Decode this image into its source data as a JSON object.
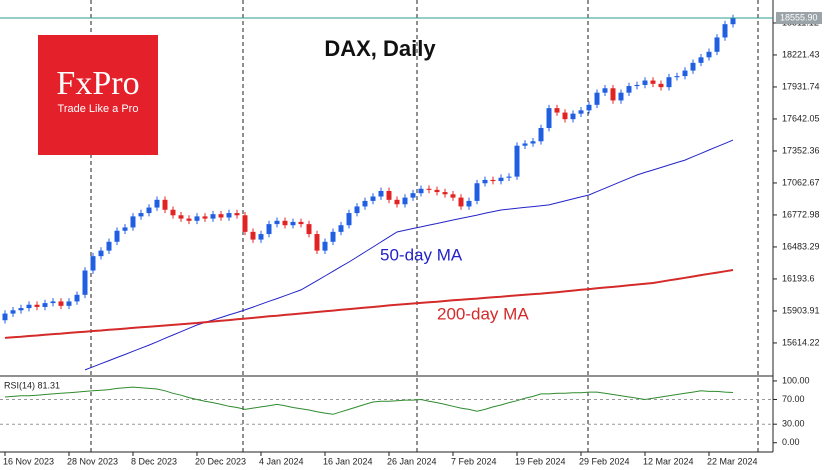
{
  "logo": {
    "name": "FxPro",
    "tagline": "Trade Like a Pro"
  },
  "chart_data": [
    {
      "type": "candlestick",
      "title": "DAX, Daily",
      "categories": [
        "16 Nov 2023",
        null,
        null,
        null,
        null,
        null,
        null,
        null,
        "28 Nov 2023",
        null,
        null,
        null,
        null,
        null,
        null,
        null,
        "8 Dec 2023",
        null,
        null,
        null,
        null,
        null,
        null,
        null,
        "20 Dec 2023",
        null,
        null,
        null,
        null,
        null,
        null,
        null,
        "4 Jan 2024",
        null,
        null,
        null,
        null,
        null,
        null,
        null,
        "16 Jan 2024",
        null,
        null,
        null,
        null,
        null,
        null,
        null,
        "26 Jan 2024",
        null,
        null,
        null,
        null,
        null,
        null,
        null,
        "7 Feb 2024",
        null,
        null,
        null,
        null,
        null,
        null,
        null,
        "19 Feb 2024",
        null,
        null,
        null,
        null,
        null,
        null,
        null,
        "29 Feb 2024",
        null,
        null,
        null,
        null,
        null,
        null,
        null,
        "12 Mar 2024",
        null,
        null,
        null,
        null,
        null,
        null,
        null,
        "22 Mar 2024",
        null,
        null,
        null
      ],
      "open": [
        15820,
        15880,
        15910,
        15930,
        15960,
        15940,
        15975,
        15990,
        15950,
        15990,
        16050,
        16270,
        16400,
        16450,
        16530,
        16630,
        16660,
        16760,
        16790,
        16840,
        16910,
        16820,
        16770,
        16740,
        16720,
        16760,
        16740,
        16780,
        16750,
        16790,
        16770,
        16620,
        16550,
        16600,
        16690,
        16720,
        16680,
        16710,
        16690,
        16600,
        16450,
        16530,
        16620,
        16680,
        16790,
        16850,
        16900,
        16940,
        16990,
        16910,
        16870,
        16930,
        16970,
        17010,
        17000,
        16980,
        16960,
        16930,
        16850,
        16900,
        17060,
        17090,
        17080,
        17110,
        17120,
        17400,
        17420,
        17440,
        17560,
        17740,
        17700,
        17640,
        17690,
        17720,
        17770,
        17880,
        17920,
        17810,
        17880,
        17940,
        17950,
        17990,
        17960,
        17930,
        18020,
        18030,
        18080,
        18150,
        18200,
        18250,
        18380,
        18500
      ],
      "high": [
        15910,
        15940,
        15960,
        15990,
        15990,
        16005,
        16020,
        16020,
        16020,
        16080,
        16300,
        16430,
        16480,
        16560,
        16660,
        16690,
        16790,
        16820,
        16870,
        16940,
        16940,
        16850,
        16800,
        16770,
        16790,
        16790,
        16810,
        16810,
        16820,
        16820,
        16800,
        16650,
        16630,
        16720,
        16750,
        16750,
        16740,
        16740,
        16720,
        16630,
        16560,
        16650,
        16710,
        16820,
        16880,
        16930,
        16970,
        17020,
        17020,
        16940,
        16960,
        17000,
        17040,
        17040,
        17030,
        17010,
        16990,
        16960,
        16930,
        17090,
        17120,
        17120,
        17140,
        17150,
        17430,
        17450,
        17470,
        17590,
        17770,
        17770,
        17730,
        17720,
        17750,
        17800,
        17910,
        17950,
        17950,
        17910,
        17970,
        17980,
        18020,
        18020,
        17990,
        18050,
        18060,
        18110,
        18180,
        18230,
        18280,
        18410,
        18530,
        18585
      ],
      "low": [
        15790,
        15850,
        15880,
        15900,
        15910,
        15910,
        15945,
        15920,
        15920,
        15960,
        16020,
        16240,
        16370,
        16420,
        16500,
        16600,
        16630,
        16730,
        16760,
        16810,
        16790,
        16740,
        16710,
        16690,
        16690,
        16710,
        16710,
        16720,
        16720,
        16740,
        16590,
        16520,
        16520,
        16570,
        16660,
        16650,
        16650,
        16660,
        16570,
        16420,
        16420,
        16500,
        16590,
        16650,
        16760,
        16820,
        16870,
        16910,
        16880,
        16840,
        16840,
        16900,
        16940,
        16970,
        16950,
        16930,
        16900,
        16820,
        16820,
        16870,
        17030,
        17050,
        17050,
        17080,
        17090,
        17370,
        17390,
        17410,
        17530,
        17670,
        17610,
        17610,
        17660,
        17690,
        17740,
        17850,
        17780,
        17780,
        17850,
        17910,
        17920,
        17930,
        17900,
        17900,
        17990,
        18000,
        18050,
        18120,
        18170,
        18220,
        18350,
        18470
      ],
      "close": [
        15880,
        15910,
        15930,
        15960,
        15940,
        15975,
        15990,
        15950,
        15990,
        16050,
        16270,
        16400,
        16450,
        16530,
        16630,
        16660,
        16760,
        16790,
        16840,
        16910,
        16820,
        16770,
        16740,
        16720,
        16760,
        16740,
        16780,
        16750,
        16790,
        16770,
        16620,
        16550,
        16600,
        16690,
        16720,
        16680,
        16710,
        16690,
        16600,
        16450,
        16530,
        16620,
        16680,
        16790,
        16850,
        16900,
        16940,
        16990,
        16910,
        16870,
        16930,
        16970,
        17010,
        17000,
        16980,
        16960,
        16930,
        16850,
        16900,
        17060,
        17090,
        17080,
        17110,
        17120,
        17400,
        17420,
        17440,
        17560,
        17740,
        17700,
        17640,
        17690,
        17720,
        17770,
        17880,
        17920,
        17810,
        17880,
        17940,
        17950,
        17990,
        17960,
        17930,
        18020,
        18030,
        18080,
        18150,
        18200,
        18250,
        18380,
        18500,
        18555.9
      ],
      "up_color": "#1f5fe0",
      "down_color": "#e02424",
      "series": [
        {
          "name": "50-day MA",
          "color": "#2323c8",
          "values": [
            null,
            null,
            null,
            null,
            null,
            null,
            null,
            null,
            null,
            null,
            15370,
            15398,
            15426,
            15454,
            15482,
            15510,
            15539,
            15567,
            15595,
            15625,
            15656,
            15686,
            15716,
            15747,
            15777,
            15800,
            15822,
            15845,
            15868,
            15890,
            15913,
            15939,
            15965,
            15991,
            16016,
            16042,
            16068,
            16094,
            16136,
            16178,
            16220,
            16263,
            16305,
            16347,
            16392,
            16438,
            16483,
            16528,
            16574,
            16619,
            16634,
            16650,
            16665,
            16681,
            16696,
            16712,
            16727,
            16742,
            16757,
            16772,
            16788,
            16803,
            16818,
            16826,
            16833,
            16841,
            16849,
            16856,
            16864,
            16882,
            16900,
            16918,
            16936,
            16954,
            16984,
            17014,
            17045,
            17075,
            17105,
            17135,
            17158,
            17180,
            17203,
            17225,
            17248,
            17270,
            17300,
            17330,
            17361,
            17391,
            17421,
            17451
          ]
        },
        {
          "name": "200-day MA",
          "color": "#d42a2a",
          "values": [
            15660,
            15666,
            15671,
            15677,
            15682,
            15688,
            15694,
            15699,
            15705,
            15711,
            15716,
            15722,
            15727,
            15733,
            15739,
            15744,
            15750,
            15756,
            15761,
            15767,
            15772,
            15778,
            15784,
            15789,
            15795,
            15802,
            15808,
            15815,
            15821,
            15828,
            15835,
            15841,
            15848,
            15855,
            15861,
            15868,
            15874,
            15881,
            15888,
            15894,
            15901,
            15907,
            15914,
            15921,
            15927,
            15934,
            15940,
            15947,
            15954,
            15960,
            15966,
            15971,
            15977,
            15983,
            15988,
            15994,
            16000,
            16005,
            16011,
            16016,
            16022,
            16028,
            16033,
            16039,
            16045,
            16050,
            16056,
            16061,
            16067,
            16074,
            16081,
            16088,
            16095,
            16102,
            16109,
            16116,
            16122,
            16129,
            16136,
            16143,
            16150,
            16157,
            16169,
            16181,
            16192,
            16204,
            16216,
            16228,
            16240,
            16251,
            16263,
            16275
          ]
        }
      ],
      "ylim": [
        15324,
        18719
      ],
      "yticks": [
        18511.12,
        18221.43,
        17931.74,
        17642.05,
        17352.36,
        17062.67,
        16772.98,
        16483.29,
        16193.6,
        15903.91,
        15614.22
      ],
      "current_price": {
        "value": 18555.9,
        "label": "18555.90"
      }
    },
    {
      "type": "line",
      "title": "RSI(14) 81.31",
      "color": "#2e8b2e",
      "values": [
        74,
        75,
        76,
        76,
        77,
        78,
        79,
        80,
        81,
        82,
        83,
        84,
        85,
        86,
        88,
        89,
        90,
        89,
        88,
        87,
        84,
        80,
        77,
        73,
        70,
        67,
        65,
        62,
        59,
        57,
        54,
        56,
        58,
        60,
        62,
        60,
        57,
        55,
        53,
        50,
        48,
        46,
        50,
        54,
        58,
        62,
        66,
        67,
        67,
        68,
        69,
        69,
        70,
        67,
        65,
        62,
        59,
        56,
        54,
        51,
        54,
        58,
        61,
        65,
        68,
        72,
        75,
        79,
        79,
        80,
        80,
        81,
        81,
        82,
        82,
        80,
        78,
        76,
        74,
        72,
        70,
        72,
        74,
        76,
        78,
        80,
        82,
        84,
        83,
        83,
        82,
        81.31
      ],
      "ylim": [
        -15,
        108
      ],
      "yticks": [
        {
          "value": 100,
          "label": "100.00"
        },
        {
          "value": 70,
          "label": "70.00"
        },
        {
          "value": 30,
          "label": "30.00"
        },
        {
          "value": 0,
          "label": "0.00"
        }
      ]
    }
  ]
}
